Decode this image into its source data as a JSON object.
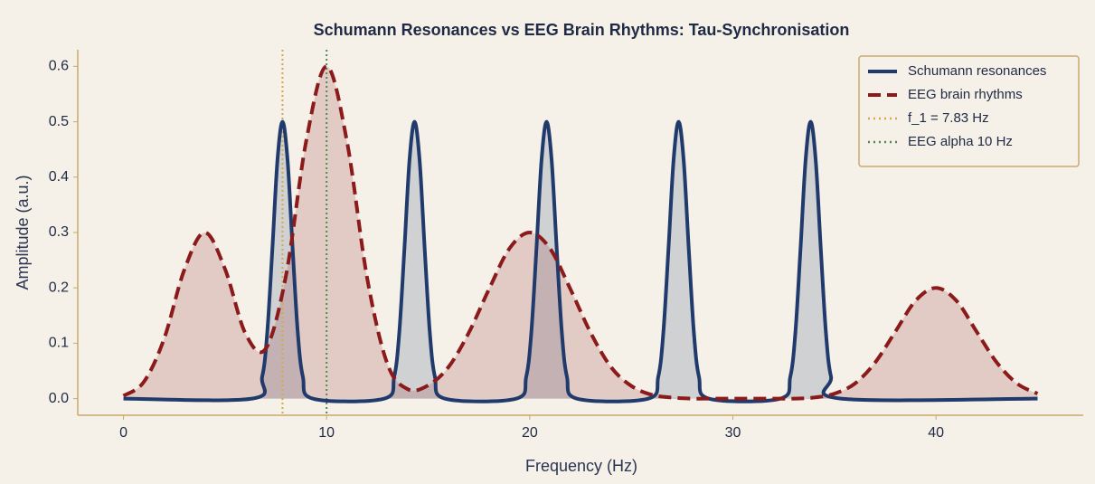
{
  "chart_data": {
    "type": "line",
    "title": "Schumann Resonances vs EEG Brain Rhythms: Tau-Synchronisation",
    "xlabel": "Frequency (Hz)",
    "ylabel": "Amplitude (a.u.)",
    "xlim": [
      -2.25,
      47.25
    ],
    "ylim": [
      -0.03,
      0.63
    ],
    "xticks": [
      0,
      10,
      20,
      30,
      40
    ],
    "yticks": [
      {
        "value": 0,
        "label": "0.0"
      },
      0.1,
      0.2,
      0.3,
      0.4,
      0.5,
      0.6
    ],
    "grid": false,
    "legend": "upper right",
    "series": [
      {
        "name": "Schumann resonances",
        "color": "#1f3a6b",
        "style": "solid",
        "x": [
          0,
          6.33,
          6.83,
          7.08,
          7.33,
          7.58,
          7.83,
          8.08,
          8.33,
          8.58,
          8.83,
          9.33,
          12.83,
          13.33,
          13.58,
          13.83,
          14.08,
          14.33,
          14.58,
          14.83,
          15.08,
          15.33,
          15.83,
          19.33,
          19.83,
          20.08,
          20.33,
          20.58,
          20.83,
          21.08,
          21.33,
          21.58,
          21.83,
          22.33,
          25.83,
          26.33,
          26.58,
          26.83,
          27.08,
          27.33,
          27.58,
          27.83,
          28.08,
          28.33,
          28.83,
          32.33,
          32.83,
          33.08,
          33.33,
          33.58,
          33.83,
          34.08,
          34.33,
          34.58,
          34.83,
          35.33,
          45
        ],
        "values": [
          0,
          0,
          0.04,
          0.12,
          0.27,
          0.43,
          0.5,
          0.43,
          0.27,
          0.12,
          0.04,
          0,
          0,
          0.04,
          0.12,
          0.27,
          0.43,
          0.5,
          0.43,
          0.27,
          0.12,
          0.04,
          0,
          0,
          0.04,
          0.12,
          0.27,
          0.43,
          0.5,
          0.43,
          0.27,
          0.12,
          0.04,
          0,
          0,
          0.04,
          0.12,
          0.27,
          0.43,
          0.5,
          0.43,
          0.27,
          0.12,
          0.04,
          0,
          0,
          0.04,
          0.12,
          0.27,
          0.43,
          0.5,
          0.43,
          0.27,
          0.12,
          0.04,
          0,
          0
        ]
      },
      {
        "name": "EEG brain rhythms",
        "color": "#8b1a1a",
        "style": "dashed",
        "x": [
          0,
          1,
          2,
          3,
          4,
          5,
          6,
          7,
          8,
          9,
          10,
          11,
          12,
          13,
          14,
          15,
          16,
          17,
          18,
          19,
          20,
          21,
          22,
          23,
          24,
          25,
          26,
          27,
          28,
          29,
          30,
          31,
          32,
          33,
          34,
          35,
          36,
          37,
          38,
          39,
          40,
          41,
          42,
          43,
          44,
          45
        ],
        "values": [
          0.005,
          0.03,
          0.108,
          0.233,
          0.3,
          0.234,
          0.118,
          0.09,
          0.222,
          0.466,
          0.6,
          0.465,
          0.217,
          0.062,
          0.017,
          0.024,
          0.057,
          0.119,
          0.198,
          0.271,
          0.3,
          0.271,
          0.198,
          0.119,
          0.057,
          0.023,
          0.007,
          0.002,
          0,
          0,
          0,
          0,
          0,
          0,
          0.002,
          0.009,
          0.027,
          0.065,
          0.121,
          0.177,
          0.2,
          0.177,
          0.121,
          0.065,
          0.027,
          0.009
        ]
      }
    ],
    "vlines": [
      {
        "name": "f_1 = 7.83 Hz",
        "x": 7.83,
        "color": "#d4a94a"
      },
      {
        "name": "EEG alpha 10 Hz",
        "x": 10,
        "color": "#4f8a55"
      }
    ]
  }
}
